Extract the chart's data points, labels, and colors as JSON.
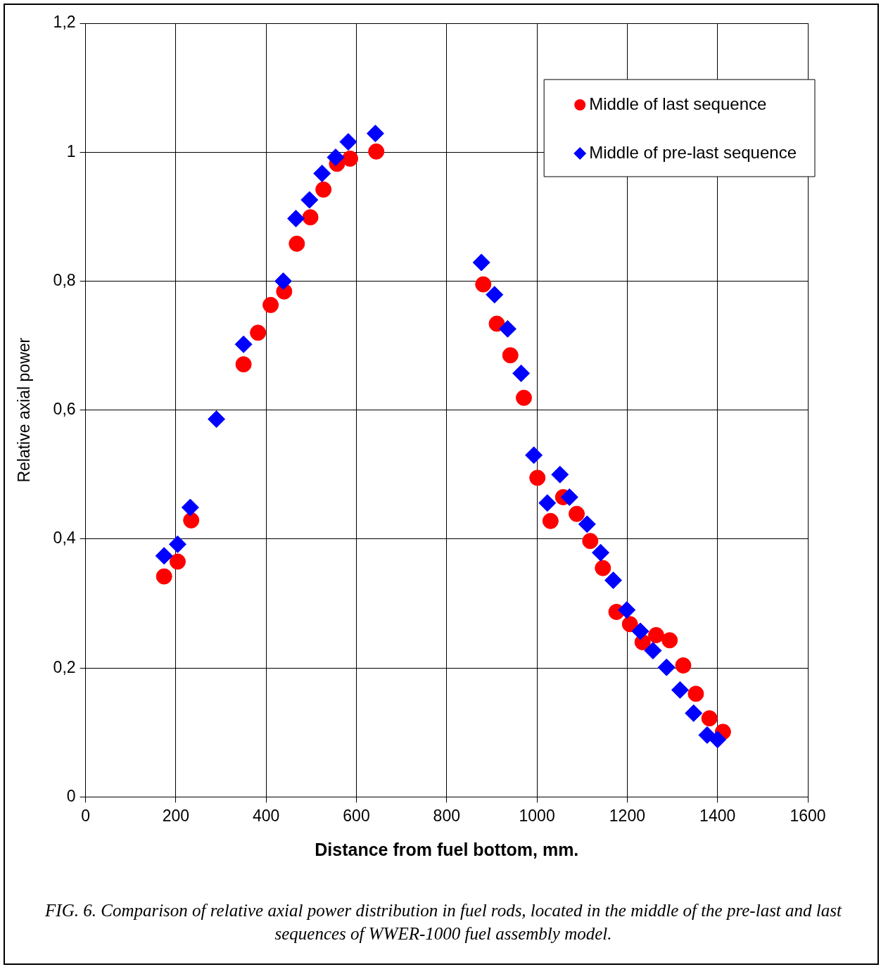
{
  "chart_data": {
    "type": "scatter",
    "xlabel": "Distance from fuel bottom, mm.",
    "ylabel": "Relative axial power",
    "annotations": [
      "FIG. 6. Comparison of relative axial power distribution in fuel rods, located in the middle of the pre-last and last sequences of WWER-1000 fuel assembly model."
    ],
    "series": [
      {
        "name": "Middle of last sequence",
        "color": "#ff0000",
        "marker": "circle",
        "x": [
          174,
          204,
          234,
          350,
          382,
          410,
          440,
          468,
          498,
          527,
          557,
          586,
          644,
          881,
          911,
          941,
          971,
          1001,
          1030,
          1058,
          1088,
          1118,
          1146,
          1176,
          1206,
          1234,
          1264,
          1294,
          1324,
          1352,
          1382,
          1412
        ],
        "values": [
          0.342,
          0.365,
          0.429,
          0.671,
          0.72,
          0.763,
          0.784,
          0.858,
          0.899,
          0.942,
          0.982,
          0.99,
          1.001,
          0.795,
          0.734,
          0.685,
          0.619,
          0.495,
          0.428,
          0.465,
          0.439,
          0.397,
          0.355,
          0.287,
          0.268,
          0.24,
          0.251,
          0.243,
          0.204,
          0.16,
          0.122,
          0.101
        ]
      },
      {
        "name": "Middle of pre-last sequence",
        "color": "#0000ff",
        "marker": "diamond",
        "x": [
          174,
          204,
          232,
          290,
          350,
          438,
          466,
          496,
          524,
          554,
          582,
          642,
          877,
          906,
          935,
          965,
          993,
          1023,
          1051,
          1072,
          1111,
          1141,
          1169,
          1199,
          1229,
          1257,
          1287,
          1317,
          1347,
          1377,
          1400
        ],
        "values": [
          0.374,
          0.392,
          0.449,
          0.586,
          0.702,
          0.8,
          0.897,
          0.926,
          0.967,
          0.992,
          1.016,
          1.029,
          0.829,
          0.779,
          0.726,
          0.657,
          0.53,
          0.456,
          0.5,
          0.465,
          0.423,
          0.379,
          0.336,
          0.29,
          0.257,
          0.227,
          0.201,
          0.166,
          0.13,
          0.096,
          0.089
        ]
      }
    ],
    "xlim": [
      0,
      1600
    ],
    "xticks": [
      0,
      200,
      400,
      600,
      800,
      1000,
      1200,
      1400,
      1600
    ],
    "ylim": [
      0,
      1.2
    ],
    "yticks": [
      0,
      {
        "value": 0.2,
        "label": "0,2"
      },
      {
        "value": 0.4,
        "label": "0,4"
      },
      {
        "value": 0.6,
        "label": "0,6"
      },
      {
        "value": 0.8,
        "label": "0,8"
      },
      1,
      {
        "value": 1.2,
        "label": "1,2"
      }
    ],
    "grid": true,
    "legend": "top right"
  }
}
